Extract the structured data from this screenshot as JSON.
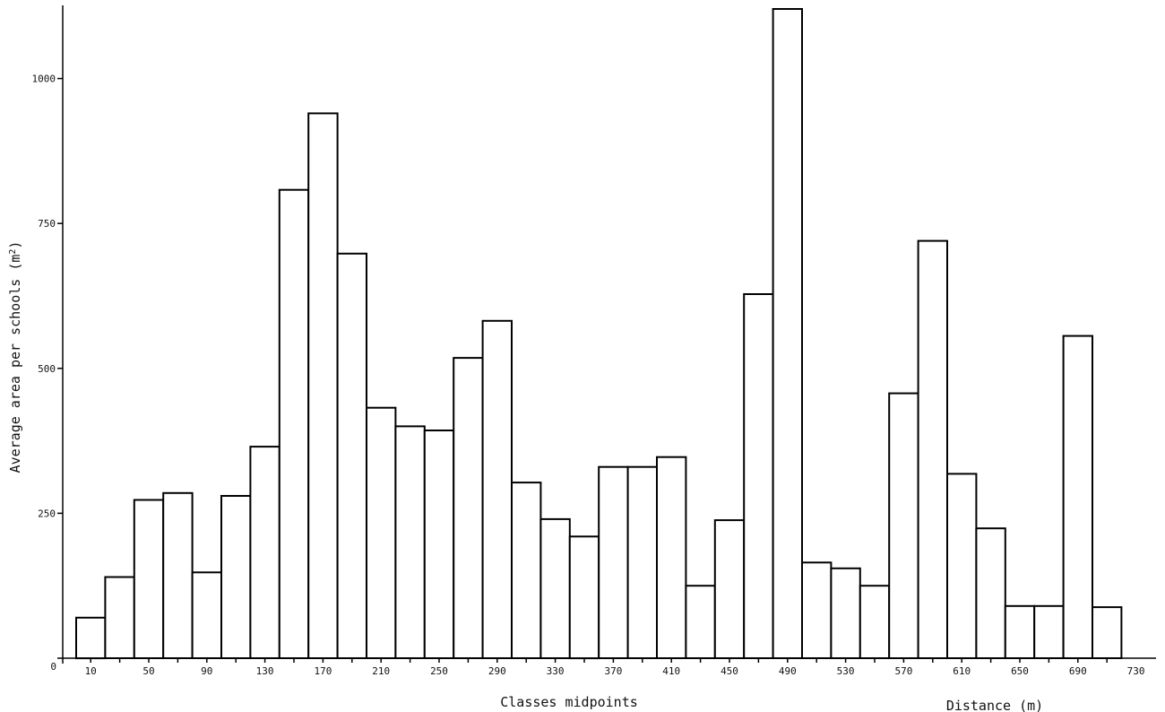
{
  "chart_data": {
    "type": "bar",
    "title": "",
    "xlabel": "Classes midpoints",
    "xlabel_secondary": "Distance (m)",
    "ylabel": "Average area per schools (m²)",
    "ylabel_parts": {
      "base": "Average area per schools (m",
      "sup": "2",
      "close": ")"
    },
    "ylim": [
      0,
      1120
    ],
    "y_ticks": [
      0,
      250,
      500,
      750,
      1000
    ],
    "x_tick_labels": [
      "10",
      "50",
      "90",
      "130",
      "170",
      "210",
      "250",
      "290",
      "330",
      "370",
      "410",
      "450",
      "490",
      "530",
      "570",
      "610",
      "650",
      "690",
      "730"
    ],
    "categories": [
      10,
      30,
      50,
      70,
      90,
      110,
      130,
      150,
      170,
      190,
      210,
      230,
      250,
      270,
      290,
      310,
      330,
      350,
      370,
      390,
      410,
      430,
      450,
      470,
      490,
      510,
      530,
      550,
      570,
      590,
      610,
      630,
      650,
      670,
      690,
      710
    ],
    "values": [
      70,
      140,
      273,
      285,
      148,
      280,
      365,
      808,
      940,
      698,
      432,
      400,
      393,
      518,
      582,
      303,
      240,
      210,
      330,
      330,
      347,
      125,
      238,
      628,
      1120,
      165,
      155,
      125,
      457,
      720,
      318,
      224,
      90,
      90,
      556,
      88
    ],
    "grid": false,
    "legend": "none"
  }
}
